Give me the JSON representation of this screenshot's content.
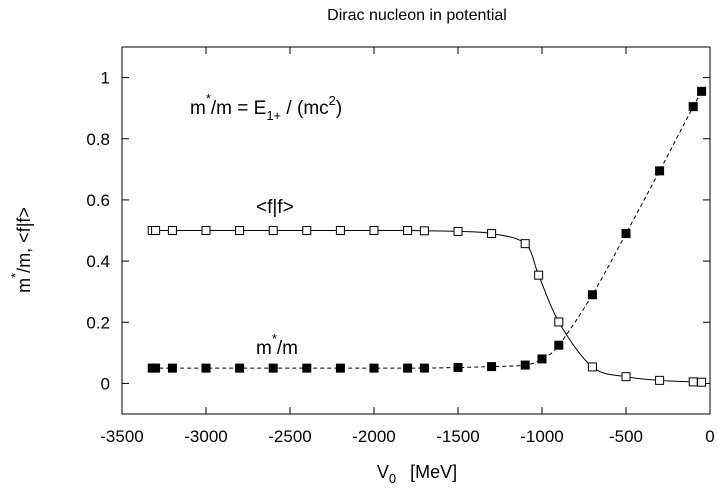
{
  "chart_data": {
    "type": "line",
    "title": "Dirac nucleon in potential",
    "xlabel": {
      "main": "V",
      "sub": "0",
      "unit": "[MeV]"
    },
    "ylabel": {
      "m": "m",
      "star": "*",
      "rest": "/m,  <f|f>"
    },
    "xlim": [
      -3500,
      0
    ],
    "ylim": [
      -0.1,
      1.1
    ],
    "x_ticks": [
      {
        "value": -3500,
        "label": "-3500"
      },
      {
        "value": -3000,
        "label": "-3000"
      },
      {
        "value": -2500,
        "label": "-2500"
      },
      {
        "value": -2000,
        "label": "-2000"
      },
      {
        "value": -1500,
        "label": "-1500"
      },
      {
        "value": -1000,
        "label": "-1000"
      },
      {
        "value": -500,
        "label": "-500"
      },
      {
        "value": 0,
        "label": "0"
      }
    ],
    "y_ticks": [
      {
        "value": 0,
        "label": "0"
      },
      {
        "value": 0.2,
        "label": "0.2"
      },
      {
        "value": 0.4,
        "label": "0.4"
      },
      {
        "value": 0.6,
        "label": "0.6"
      },
      {
        "value": 0.8,
        "label": "0.8"
      },
      {
        "value": 1,
        "label": "1"
      }
    ],
    "grid": false,
    "annotations": {
      "formula": {
        "m": "m",
        "star": "*",
        "mid": "/m = E",
        "sub": "1+",
        "rest": " / (mc",
        "sup": "2",
        "end": ")"
      },
      "ff_label": "<f|f>",
      "ms_label": {
        "m": "m",
        "star": "*",
        "rest": "/m"
      }
    },
    "series": [
      {
        "marker": "open-square",
        "line": "solid",
        "x": [
          -3320,
          -3300,
          -3200,
          -3000,
          -2800,
          -2600,
          -2400,
          -2200,
          -2000,
          -1800,
          -1700,
          -1500,
          -1300,
          -1100,
          -1020,
          -900,
          -700,
          -500,
          -300,
          -100,
          -50
        ],
        "y": [
          0.5,
          0.5,
          0.5,
          0.5,
          0.5,
          0.5,
          0.5,
          0.5,
          0.5,
          0.5,
          0.499,
          0.497,
          0.49,
          0.457,
          0.354,
          0.201,
          0.054,
          0.022,
          0.01,
          0.005,
          0.004
        ]
      },
      {
        "marker": "filled-square",
        "line": "dashed",
        "x": [
          -3320,
          -3300,
          -3200,
          -3000,
          -2800,
          -2600,
          -2400,
          -2200,
          -2000,
          -1800,
          -1700,
          -1500,
          -1300,
          -1100,
          -1000,
          -900,
          -700,
          -500,
          -300,
          -100,
          -50
        ],
        "y": [
          0.05,
          0.05,
          0.05,
          0.05,
          0.05,
          0.05,
          0.05,
          0.05,
          0.05,
          0.05,
          0.05,
          0.052,
          0.055,
          0.06,
          0.08,
          0.125,
          0.29,
          0.49,
          0.695,
          0.905,
          0.955
        ]
      }
    ]
  }
}
